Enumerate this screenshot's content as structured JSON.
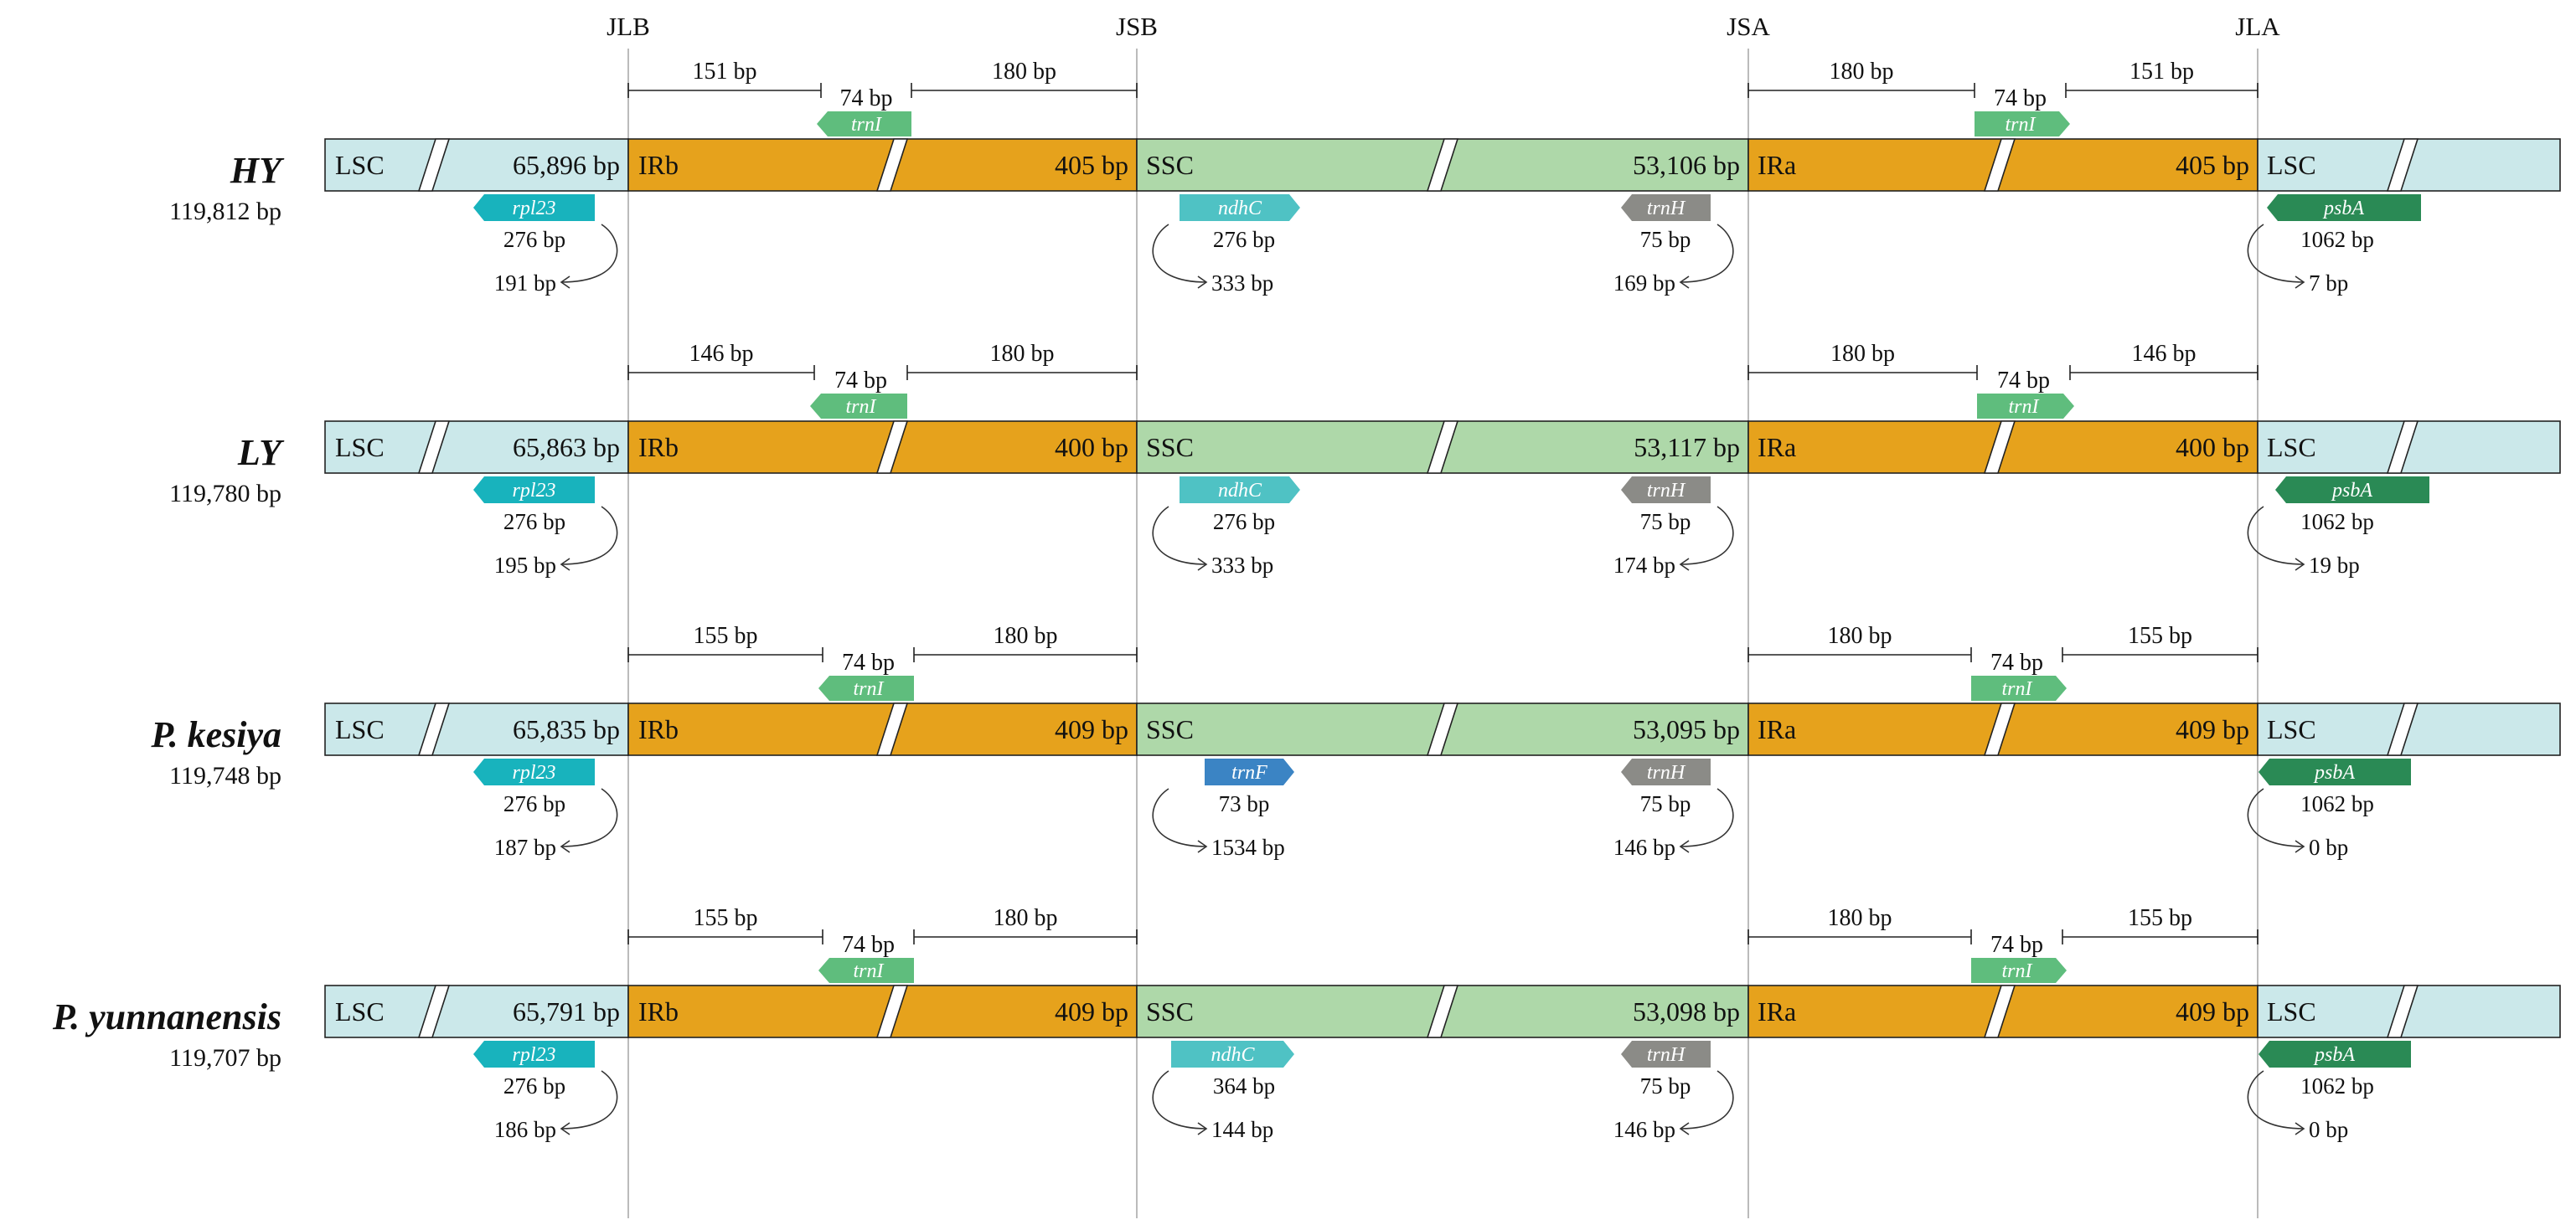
{
  "colors": {
    "lsc": "#cbe8ea",
    "ir": "#e6a21c",
    "ssc": "#aed8a9",
    "trnI": "#5fbd7d",
    "rpl23": "#18b3bd",
    "ndhC": "#4fc2c4",
    "trnF": "#3b84c4",
    "trnH": "#8b8b87",
    "psbA": "#2a8a55",
    "junction_line": "#bbbbbb"
  },
  "junctions": [
    "JLB",
    "JSB",
    "JSA",
    "JLA"
  ],
  "species": [
    {
      "name": "HY",
      "length": "119,812 bp",
      "lsc_label": "LSC",
      "lsc_size": "65,896 bp",
      "irb_label": "IRb",
      "irb_size": "405 bp",
      "ssc_label": "SSC",
      "ssc_size": "53,106 bp",
      "ira_label": "IRa",
      "ira_size": "405 bp",
      "lsc2_label": "LSC",
      "brackets": {
        "jlb_left": "151 bp",
        "trnI": "74 bp",
        "jsb_right": "180 bp",
        "jsa_left": "180 bp",
        "trnI_right": "74 bp",
        "jla_right": "151 bp"
      },
      "rpl23": {
        "gene": "rpl23",
        "len": "276 bp",
        "dist": "191 bp"
      },
      "ssc_start": {
        "gene": "ndhC",
        "len": "276 bp",
        "dist": "333 bp",
        "color_key": "ndhC"
      },
      "trnH": {
        "gene": "trnH",
        "len": "75 bp",
        "dist": "169 bp"
      },
      "psbA": {
        "gene": "psbA",
        "len": "1062 bp",
        "dist": "7 bp"
      },
      "trnI_left": "trnI",
      "trnI_right": "trnI"
    },
    {
      "name": "LY",
      "length": "119,780 bp",
      "lsc_label": "LSC",
      "lsc_size": "65,863 bp",
      "irb_label": "IRb",
      "irb_size": "400 bp",
      "ssc_label": "SSC",
      "ssc_size": "53,117 bp",
      "ira_label": "IRa",
      "ira_size": "400 bp",
      "lsc2_label": "LSC",
      "brackets": {
        "jlb_left": "146 bp",
        "trnI": "74 bp",
        "jsb_right": "180 bp",
        "jsa_left": "180 bp",
        "trnI_right": "74 bp",
        "jla_right": "146 bp"
      },
      "rpl23": {
        "gene": "rpl23",
        "len": "276 bp",
        "dist": "195 bp"
      },
      "ssc_start": {
        "gene": "ndhC",
        "len": "276 bp",
        "dist": "333 bp",
        "color_key": "ndhC"
      },
      "trnH": {
        "gene": "trnH",
        "len": "75 bp",
        "dist": "174 bp"
      },
      "psbA": {
        "gene": "psbA",
        "len": "1062 bp",
        "dist": "19 bp"
      },
      "trnI_left": "trnI",
      "trnI_right": "trnI"
    },
    {
      "name": "P. kesiya",
      "length": "119,748 bp",
      "lsc_label": "LSC",
      "lsc_size": "65,835 bp",
      "irb_label": "IRb",
      "irb_size": "409 bp",
      "ssc_label": "SSC",
      "ssc_size": "53,095 bp",
      "ira_label": "IRa",
      "ira_size": "409 bp",
      "lsc2_label": "LSC",
      "brackets": {
        "jlb_left": "155 bp",
        "trnI": "74 bp",
        "jsb_right": "180 bp",
        "jsa_left": "180 bp",
        "trnI_right": "74 bp",
        "jla_right": "155 bp"
      },
      "rpl23": {
        "gene": "rpl23",
        "len": "276 bp",
        "dist": "187 bp"
      },
      "ssc_start": {
        "gene": "trnF",
        "len": "73 bp",
        "dist": "1534 bp",
        "color_key": "trnF"
      },
      "trnH": {
        "gene": "trnH",
        "len": "75 bp",
        "dist": "146 bp"
      },
      "psbA": {
        "gene": "psbA",
        "len": "1062 bp",
        "dist": "0 bp"
      },
      "trnI_left": "trnI",
      "trnI_right": "trnI"
    },
    {
      "name": "P. yunnanensis",
      "length": "119,707 bp",
      "lsc_label": "LSC",
      "lsc_size": "65,791 bp",
      "irb_label": "IRb",
      "irb_size": "409 bp",
      "ssc_label": "SSC",
      "ssc_size": "53,098 bp",
      "ira_label": "IRa",
      "ira_size": "409 bp",
      "lsc2_label": "LSC",
      "brackets": {
        "jlb_left": "155 bp",
        "trnI": "74 bp",
        "jsb_right": "180 bp",
        "jsa_left": "180 bp",
        "trnI_right": "74 bp",
        "jla_right": "155 bp"
      },
      "rpl23": {
        "gene": "rpl23",
        "len": "276 bp",
        "dist": "186 bp"
      },
      "ssc_start": {
        "gene": "ndhC",
        "len": "364 bp",
        "dist": "144 bp",
        "color_key": "ndhC"
      },
      "trnH": {
        "gene": "trnH",
        "len": "75 bp",
        "dist": "146 bp"
      },
      "psbA": {
        "gene": "psbA",
        "len": "1062 bp",
        "dist": "0 bp"
      },
      "trnI_left": "trnI",
      "trnI_right": "trnI"
    }
  ]
}
